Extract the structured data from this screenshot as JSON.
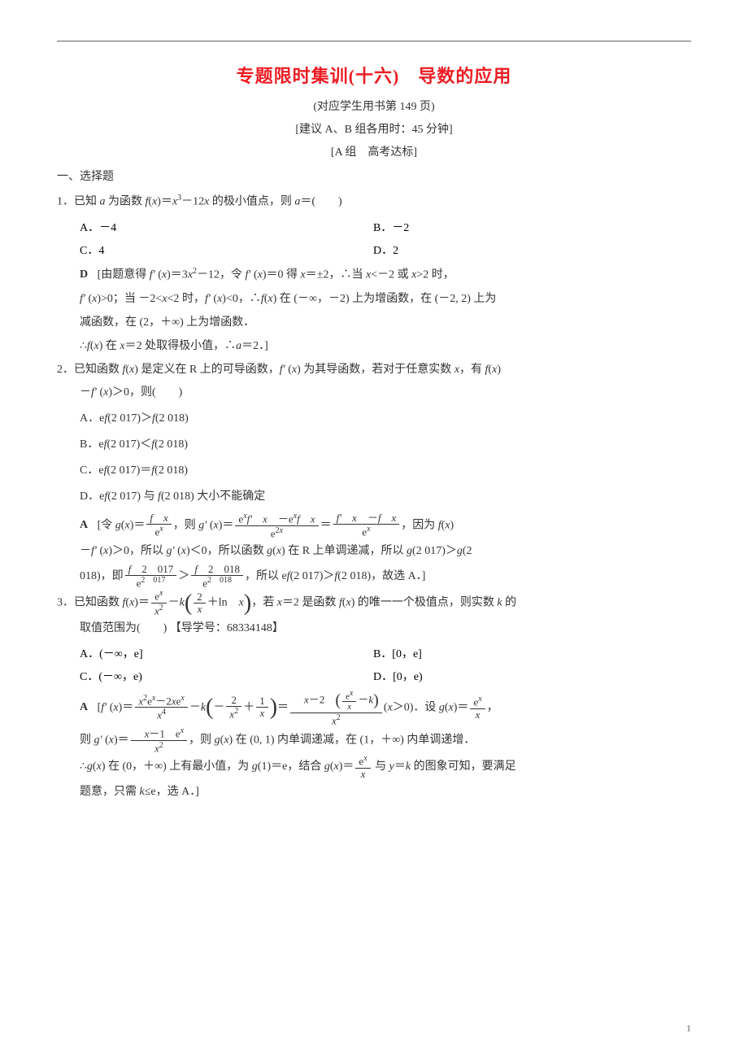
{
  "title": "专题限时集训(十六)　导数的应用",
  "subtitle1": "(对应学生用书第 149 页)",
  "subtitle2": "[建议 A、B 组各用时：45 分钟]",
  "subtitle3": "[A 组　高考达标]",
  "section": "一、选择题",
  "q1": {
    "stem_prefix": "1．已知 ",
    "stem_mid": " 为函数 ",
    "stem_suffix": " 的极小值点，则 ",
    "stem_end": "＝(　　)",
    "optA": "A．－4",
    "optB": "B．－2",
    "optC": "C．4",
    "optD": "D．2",
    "answer": "D",
    "sol1": "[由题意得 ",
    "sol2": "，令 ",
    "sol3": " 得 ",
    "sol4": "，∴当 ",
    "sol5": " 或 ",
    "sol6": " 时，",
    "sol7": "；当 ",
    "sol8": " 时，",
    "sol9": "，∴",
    "sol10": " 在 (－∞，－2) 上为增函数，在 (－2, 2) 上为",
    "sol11": "减函数，在 (2，＋∞) 上为增函数．",
    "sol12": "∴",
    "sol13": " 在 ",
    "sol14": " 处取得极小值，∴",
    "sol15": "]"
  },
  "q2": {
    "stem1": "2．已知函数 ",
    "stem2": " 是定义在 R 上的可导函数，",
    "stem3": " 为其导函数，若对于任意实数 ",
    "stem4": "，有 ",
    "stem5": "，则(　　)",
    "optA": "A．e",
    "optA2": "(2 017)＞",
    "optA3": "(2 018)",
    "optB": "B．e",
    "optB2": "(2 017)＜",
    "optB3": "(2 018)",
    "optC": "C．e",
    "optC2": "(2 017)＝",
    "optC3": "(2 018)",
    "optD": "D．e",
    "optD2": "(2 017) 与 ",
    "optD3": "(2 018) 大小不能确定",
    "answer": "A",
    "sol_prefix": "[令 ",
    "sol_mid1": "，则 ",
    "sol_mid2": "，因为 ",
    "sol_mid3": "，所以 ",
    "sol_mid4": "，所以函数 ",
    "sol_mid5": " 在 R 上单调递减，所以 ",
    "sol_mid6": "018)，即",
    "sol_mid7": "，所以 e",
    "sol_mid8": "(2 017)＞",
    "sol_mid9": "(2 018)，故选 A．]"
  },
  "q3": {
    "stem1": "3．已知函数 ",
    "stem2": "，若 ",
    "stem3": " 是函数 ",
    "stem4": " 的唯一一个极值点，则实数 ",
    "stem5": " 的",
    "stem6": "取值范围为(　　)",
    "guide": "【导学号：68334148】",
    "optA": "A．(－∞，e]",
    "optB": "B．[0，e]",
    "optC": "C．(－∞，e)",
    "optD": "D．[0，e)",
    "answer": "A",
    "sol1": "[",
    "sol2": "．设 ",
    "sol3": "，",
    "sol4": "则 ",
    "sol5": "，则 ",
    "sol6": " 在 (0, 1) 内单调递减，在 (1，＋∞) 内单调递增．",
    "sol7": "∴",
    "sol8": " 在 (0，＋∞) 上有最小值，为 ",
    "sol9": "，结合 ",
    "sol10": " 与 ",
    "sol11": " 的图象可知，要满足",
    "sol12": "题意，只需 ",
    "sol13": "，选 A．]"
  },
  "page_number": "1"
}
